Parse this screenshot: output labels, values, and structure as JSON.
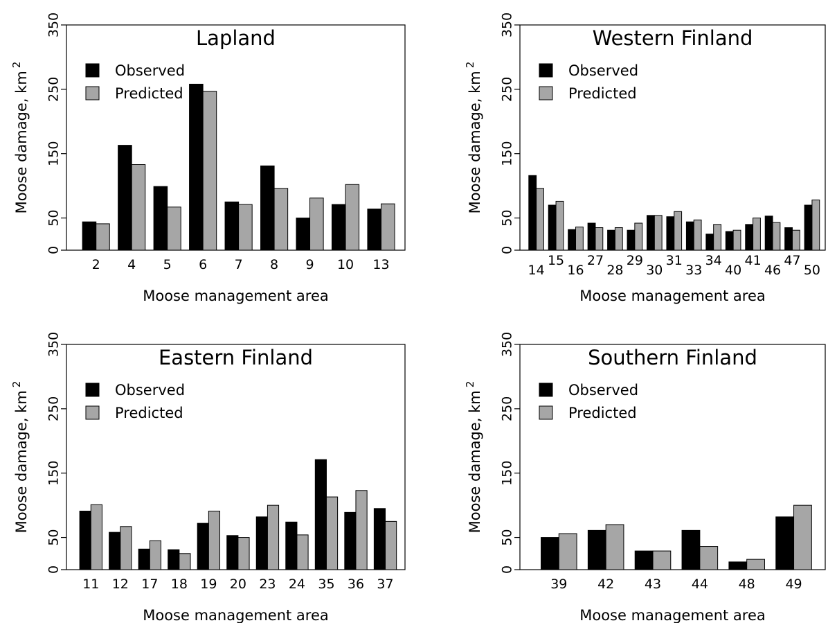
{
  "chart_data": [
    {
      "type": "bar",
      "title": "Lapland",
      "xlabel": "Moose management area",
      "ylabel": "Moose damage, km",
      "ylabel_superscript": "2",
      "ylim": [
        0,
        350
      ],
      "yticks": [
        "0",
        "50",
        "150",
        "250",
        "350"
      ],
      "ytick_values": [
        0,
        50,
        150,
        250,
        350
      ],
      "legend_position": "top-left",
      "categories": [
        "2",
        "4",
        "5",
        "6",
        "7",
        "8",
        "9",
        "10",
        "13"
      ],
      "series": [
        {
          "name": "Observed",
          "color": "#000000",
          "values": [
            44,
            163,
            99,
            258,
            75,
            131,
            50,
            71,
            64
          ]
        },
        {
          "name": "Predicted",
          "color": "#a6a6a6",
          "values": [
            41,
            133,
            67,
            247,
            71,
            96,
            81,
            102,
            72
          ]
        }
      ]
    },
    {
      "type": "bar",
      "title": "Western Finland",
      "xlabel": "Moose management area",
      "ylabel": "Moose damage, km",
      "ylabel_superscript": "2",
      "ylim": [
        0,
        350
      ],
      "yticks": [
        "0",
        "50",
        "150",
        "250",
        "350"
      ],
      "ytick_values": [
        0,
        50,
        150,
        250,
        350
      ],
      "legend_position": "top-left",
      "staggered_tick_labels": true,
      "categories": [
        "14",
        "15",
        "16",
        "27",
        "28",
        "29",
        "30",
        "31",
        "33",
        "34",
        "40",
        "41",
        "46",
        "47",
        "50"
      ],
      "series": [
        {
          "name": "Observed",
          "color": "#000000",
          "values": [
            116,
            70,
            32,
            42,
            31,
            31,
            54,
            52,
            44,
            25,
            29,
            40,
            53,
            35,
            70
          ]
        },
        {
          "name": "Predicted",
          "color": "#a6a6a6",
          "values": [
            96,
            76,
            36,
            35,
            35,
            42,
            54,
            60,
            47,
            40,
            31,
            50,
            43,
            31,
            78
          ]
        }
      ]
    },
    {
      "type": "bar",
      "title": "Eastern Finland",
      "xlabel": "Moose management area",
      "ylabel": "Moose damage, km",
      "ylabel_superscript": "2",
      "ylim": [
        0,
        350
      ],
      "yticks": [
        "0",
        "50",
        "150",
        "250",
        "350"
      ],
      "ytick_values": [
        0,
        50,
        150,
        250,
        350
      ],
      "legend_position": "top-left",
      "categories": [
        "11",
        "12",
        "17",
        "18",
        "19",
        "20",
        "23",
        "24",
        "35",
        "36",
        "37"
      ],
      "series": [
        {
          "name": "Observed",
          "color": "#000000",
          "values": [
            91,
            58,
            32,
            31,
            72,
            53,
            82,
            74,
            171,
            89,
            95
          ]
        },
        {
          "name": "Predicted",
          "color": "#a6a6a6",
          "values": [
            101,
            67,
            45,
            25,
            91,
            50,
            100,
            54,
            113,
            123,
            75
          ]
        }
      ]
    },
    {
      "type": "bar",
      "title": "Southern Finland",
      "xlabel": "Moose management area",
      "ylabel": "Moose damage, km",
      "ylabel_superscript": "2",
      "ylim": [
        0,
        350
      ],
      "yticks": [
        "0",
        "50",
        "150",
        "250",
        "350"
      ],
      "ytick_values": [
        0,
        50,
        150,
        250,
        350
      ],
      "legend_position": "top-left",
      "categories": [
        "39",
        "42",
        "43",
        "44",
        "48",
        "49"
      ],
      "series": [
        {
          "name": "Observed",
          "color": "#000000",
          "values": [
            50,
            61,
            29,
            61,
            12,
            82
          ]
        },
        {
          "name": "Predicted",
          "color": "#a6a6a6",
          "values": [
            56,
            70,
            29,
            36,
            16,
            100
          ]
        }
      ]
    }
  ]
}
